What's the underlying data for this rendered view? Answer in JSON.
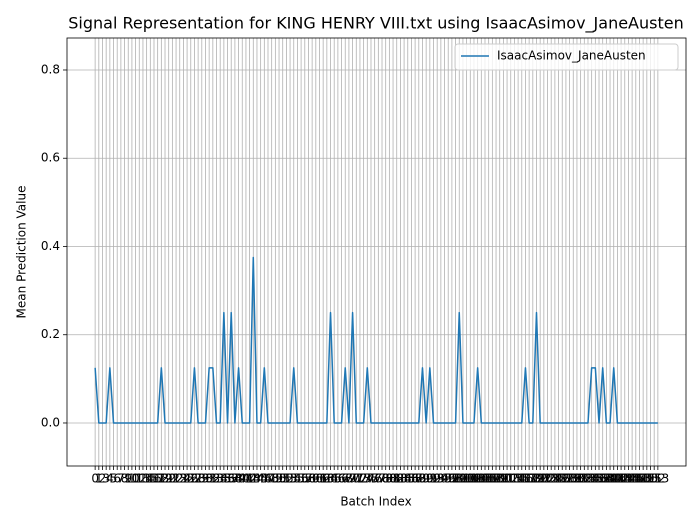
{
  "chart_data": {
    "type": "line",
    "title": "Signal Representation for KING HENRY VIII.txt using IsaacAsimov_JaneAusten",
    "xlabel": "Batch Index",
    "ylabel": "Mean Prediction Value",
    "x": [
      0,
      1,
      2,
      3,
      4,
      5,
      6,
      7,
      8,
      9,
      10,
      11,
      12,
      13,
      14,
      15,
      16,
      17,
      18,
      19,
      20,
      21,
      22,
      23,
      24,
      25,
      26,
      27,
      28,
      29,
      30,
      31,
      32,
      33,
      34,
      35,
      36,
      37,
      38,
      39,
      40,
      41,
      42,
      43,
      44,
      45,
      46,
      47,
      48,
      49,
      50,
      51,
      52,
      53,
      54,
      55,
      56,
      57,
      58,
      59,
      60,
      61,
      62,
      63,
      64,
      65,
      66,
      67,
      68,
      69,
      70,
      71,
      72,
      73,
      74,
      75,
      76,
      77,
      78,
      79,
      80,
      81,
      82,
      83,
      84,
      85,
      86,
      87,
      88,
      89,
      90,
      91,
      92,
      93,
      94,
      95,
      96,
      97,
      98,
      99,
      100,
      101,
      102,
      103,
      104,
      105,
      106,
      107,
      108,
      109,
      110,
      111,
      112,
      113,
      114,
      115,
      116,
      117,
      118,
      119,
      120,
      121,
      122,
      123,
      124,
      125,
      126,
      127,
      128,
      129,
      130,
      131,
      132,
      133,
      134,
      135,
      136,
      137,
      138,
      139,
      140,
      141,
      142,
      143,
      144,
      145,
      146,
      147,
      148,
      149,
      150,
      151,
      152,
      153
    ],
    "series": [
      {
        "name": "IsaacAsimov_JaneAusten",
        "color": "#1f77b4",
        "values": [
          0.125,
          0,
          0,
          0,
          0.125,
          0,
          0,
          0,
          0,
          0,
          0,
          0,
          0,
          0,
          0,
          0,
          0,
          0,
          0.125,
          0,
          0,
          0,
          0,
          0,
          0,
          0,
          0,
          0.125,
          0,
          0,
          0,
          0.125,
          0.125,
          0,
          0,
          0.25,
          0,
          0.25,
          0,
          0.125,
          0,
          0,
          0,
          0.375,
          0,
          0,
          0.125,
          0,
          0,
          0,
          0,
          0,
          0,
          0,
          0.125,
          0,
          0,
          0,
          0,
          0,
          0,
          0,
          0,
          0,
          0.25,
          0,
          0,
          0,
          0.125,
          0,
          0.25,
          0,
          0,
          0,
          0.125,
          0,
          0,
          0,
          0,
          0,
          0,
          0,
          0,
          0,
          0,
          0,
          0,
          0,
          0,
          0.125,
          0,
          0.125,
          0,
          0,
          0,
          0,
          0,
          0,
          0,
          0.25,
          0,
          0,
          0,
          0,
          0.125,
          0,
          0,
          0,
          0,
          0,
          0,
          0,
          0,
          0,
          0,
          0,
          0,
          0.125,
          0,
          0,
          0.25,
          0,
          0,
          0,
          0,
          0,
          0,
          0,
          0,
          0,
          0,
          0,
          0,
          0,
          0,
          0.125,
          0.125,
          0,
          0.125,
          0,
          0,
          0.125,
          0,
          0,
          0,
          0,
          0,
          0,
          0,
          0,
          0,
          0,
          0,
          0
        ]
      }
    ],
    "xlim": [
      -7.65,
      160.65
    ],
    "xticks": [
      0,
      1,
      2,
      3,
      4,
      5,
      6,
      7,
      8,
      9,
      10,
      11,
      12,
      13,
      14,
      15,
      16,
      17,
      18,
      19,
      20,
      21,
      22,
      23,
      24,
      25,
      26,
      27,
      28,
      29,
      30,
      31,
      32,
      33,
      34,
      35,
      36,
      37,
      38,
      39,
      40,
      41,
      42,
      43,
      44,
      45,
      46,
      47,
      48,
      49,
      50,
      51,
      52,
      53,
      54,
      55,
      56,
      57,
      58,
      59,
      60,
      61,
      62,
      63,
      64,
      65,
      66,
      67,
      68,
      69,
      70,
      71,
      72,
      73,
      74,
      75,
      76,
      77,
      78,
      79,
      80,
      81,
      82,
      83,
      84,
      85,
      86,
      87,
      88,
      89,
      90,
      91,
      92,
      93,
      94,
      95,
      96,
      97,
      98,
      99,
      100,
      101,
      102,
      103,
      104,
      105,
      106,
      107,
      108,
      109,
      110,
      111,
      112,
      113,
      114,
      115,
      116,
      117,
      118,
      119,
      120,
      121,
      122,
      123,
      124,
      125,
      126,
      127,
      128,
      129,
      130,
      131,
      132,
      133,
      134,
      135,
      136,
      137,
      138,
      139,
      140,
      141,
      142,
      143,
      144,
      145,
      146,
      147,
      148,
      149,
      150,
      151,
      152,
      153
    ],
    "ylim": [
      -0.0975,
      0.8725
    ],
    "yticks": [
      {
        "value": 0,
        "label": "0.0"
      },
      0.2,
      0.4,
      0.6,
      0.8
    ],
    "grid": true,
    "legend": "upper right"
  }
}
